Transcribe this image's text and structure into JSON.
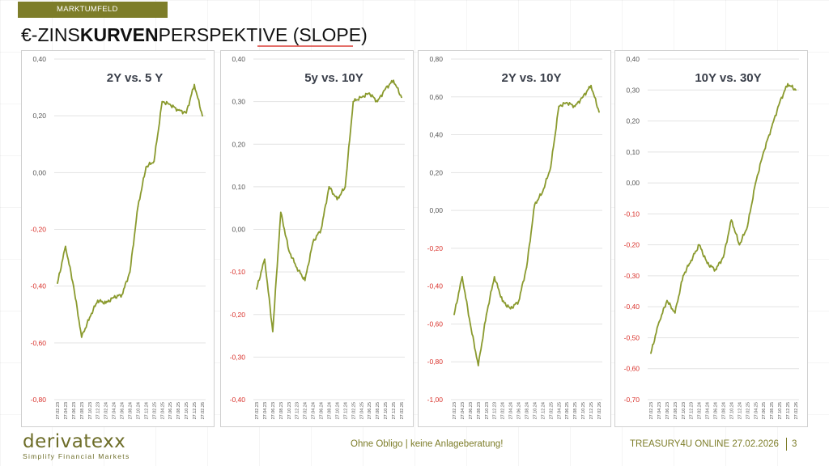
{
  "header": {
    "section": "MARKTUMFELD",
    "title_prefix": "€-ZINS",
    "title_bold": "KURVEN",
    "title_suffix": "PERSPEKTIVE (SLOPE)"
  },
  "footer": {
    "logo_text": "derivatexx",
    "logo_tagline": "Simplify Financial Markets",
    "disclaimer": "Ohne Obligo | keine Anlageberatung!",
    "event": "TREASURY4U ONLINE 27.02.2026",
    "page_number": "3"
  },
  "colors": {
    "line": "#8a9a2e",
    "accent": "#7d7d29",
    "negative_tick": "#d9302a",
    "positive_tick": "#555555"
  },
  "chart_data": [
    {
      "type": "line",
      "title": "2Y vs. 5 Y",
      "ylim": [
        -0.8,
        0.4
      ],
      "yticks": [
        0.4,
        0.2,
        0.0,
        -0.2,
        -0.4,
        -0.6,
        -0.8
      ],
      "ytick_labels": [
        "0,40",
        "0,20",
        "0,00",
        "-0,20",
        "-0,40",
        "-0,60",
        "-0,80"
      ],
      "x": [
        "27.02.23",
        "27.04.23",
        "27.06.23",
        "27.08.23",
        "27.10.23",
        "27.12.23",
        "27.02.24",
        "27.04.24",
        "27.06.24",
        "27.08.24",
        "27.10.24",
        "27.12.24",
        "27.02.25",
        "27.04.25",
        "27.06.25",
        "27.08.25",
        "27.10.25",
        "27.12.25",
        "27.02.26"
      ],
      "values": [
        -0.39,
        -0.26,
        -0.4,
        -0.58,
        -0.51,
        -0.45,
        -0.46,
        -0.44,
        -0.43,
        -0.35,
        -0.12,
        0.02,
        0.04,
        0.25,
        0.24,
        0.22,
        0.21,
        0.31,
        0.2
      ],
      "grid": true
    },
    {
      "type": "line",
      "title": "5y vs. 10Y",
      "ylim": [
        -0.4,
        0.4
      ],
      "yticks": [
        0.4,
        0.3,
        0.2,
        0.1,
        0.0,
        -0.1,
        -0.2,
        -0.3,
        -0.4
      ],
      "ytick_labels": [
        "0,40",
        "0,30",
        "0,20",
        "0,10",
        "0,00",
        "-0,10",
        "-0,20",
        "-0,30",
        "-0,40"
      ],
      "x": [
        "27.02.23",
        "27.04.23",
        "27.06.23",
        "27.08.23",
        "27.10.23",
        "27.12.23",
        "27.02.24",
        "27.04.24",
        "27.06.24",
        "27.08.24",
        "27.10.24",
        "27.12.24",
        "27.02.25",
        "27.04.25",
        "27.06.25",
        "27.08.25",
        "27.10.25",
        "27.12.25",
        "27.02.26"
      ],
      "values": [
        -0.14,
        -0.07,
        -0.24,
        0.04,
        -0.05,
        -0.09,
        -0.12,
        -0.03,
        0.0,
        0.1,
        0.07,
        0.1,
        0.3,
        0.31,
        0.32,
        0.3,
        0.33,
        0.35,
        0.31
      ],
      "grid": true
    },
    {
      "type": "line",
      "title": "2Y vs. 10Y",
      "ylim": [
        -1.0,
        0.8
      ],
      "yticks": [
        0.8,
        0.6,
        0.4,
        0.2,
        0.0,
        -0.2,
        -0.4,
        -0.6,
        -0.8,
        -1.0
      ],
      "ytick_labels": [
        "0,80",
        "0,60",
        "0,40",
        "0,20",
        "0,00",
        "-0,20",
        "-0,40",
        "-0,60",
        "-0,80",
        "-1,00"
      ],
      "x": [
        "27.02.23",
        "27.04.23",
        "27.06.23",
        "27.08.23",
        "27.10.23",
        "27.12.23",
        "27.02.24",
        "27.04.24",
        "27.06.24",
        "27.08.24",
        "27.10.24",
        "27.12.24",
        "27.02.25",
        "27.04.25",
        "27.06.25",
        "27.08.25",
        "27.10.25",
        "27.12.25",
        "27.02.26"
      ],
      "values": [
        -0.55,
        -0.35,
        -0.6,
        -0.82,
        -0.55,
        -0.35,
        -0.48,
        -0.52,
        -0.48,
        -0.3,
        0.03,
        0.1,
        0.23,
        0.55,
        0.57,
        0.55,
        0.6,
        0.66,
        0.52
      ],
      "grid": true
    },
    {
      "type": "line",
      "title": "10Y vs. 30Y",
      "ylim": [
        -0.7,
        0.4
      ],
      "yticks": [
        0.4,
        0.3,
        0.2,
        0.1,
        0.0,
        -0.1,
        -0.2,
        -0.3,
        -0.4,
        -0.5,
        -0.6,
        -0.7
      ],
      "ytick_labels": [
        "0,40",
        "0,30",
        "0,20",
        "0,10",
        "0,00",
        "-0,10",
        "-0,20",
        "-0,30",
        "-0,40",
        "-0,50",
        "-0,60",
        "-0,70"
      ],
      "x": [
        "27.02.23",
        "27.04.23",
        "27.06.23",
        "27.08.23",
        "27.10.23",
        "27.12.23",
        "27.02.24",
        "27.04.24",
        "27.06.24",
        "27.08.24",
        "27.10.24",
        "27.12.24",
        "27.02.25",
        "27.04.25",
        "27.06.25",
        "27.08.25",
        "27.10.25",
        "27.12.25",
        "27.02.26"
      ],
      "values": [
        -0.55,
        -0.45,
        -0.38,
        -0.42,
        -0.3,
        -0.25,
        -0.2,
        -0.26,
        -0.28,
        -0.24,
        -0.12,
        -0.2,
        -0.14,
        0.0,
        0.1,
        0.18,
        0.26,
        0.32,
        0.3
      ],
      "grid": true
    }
  ]
}
